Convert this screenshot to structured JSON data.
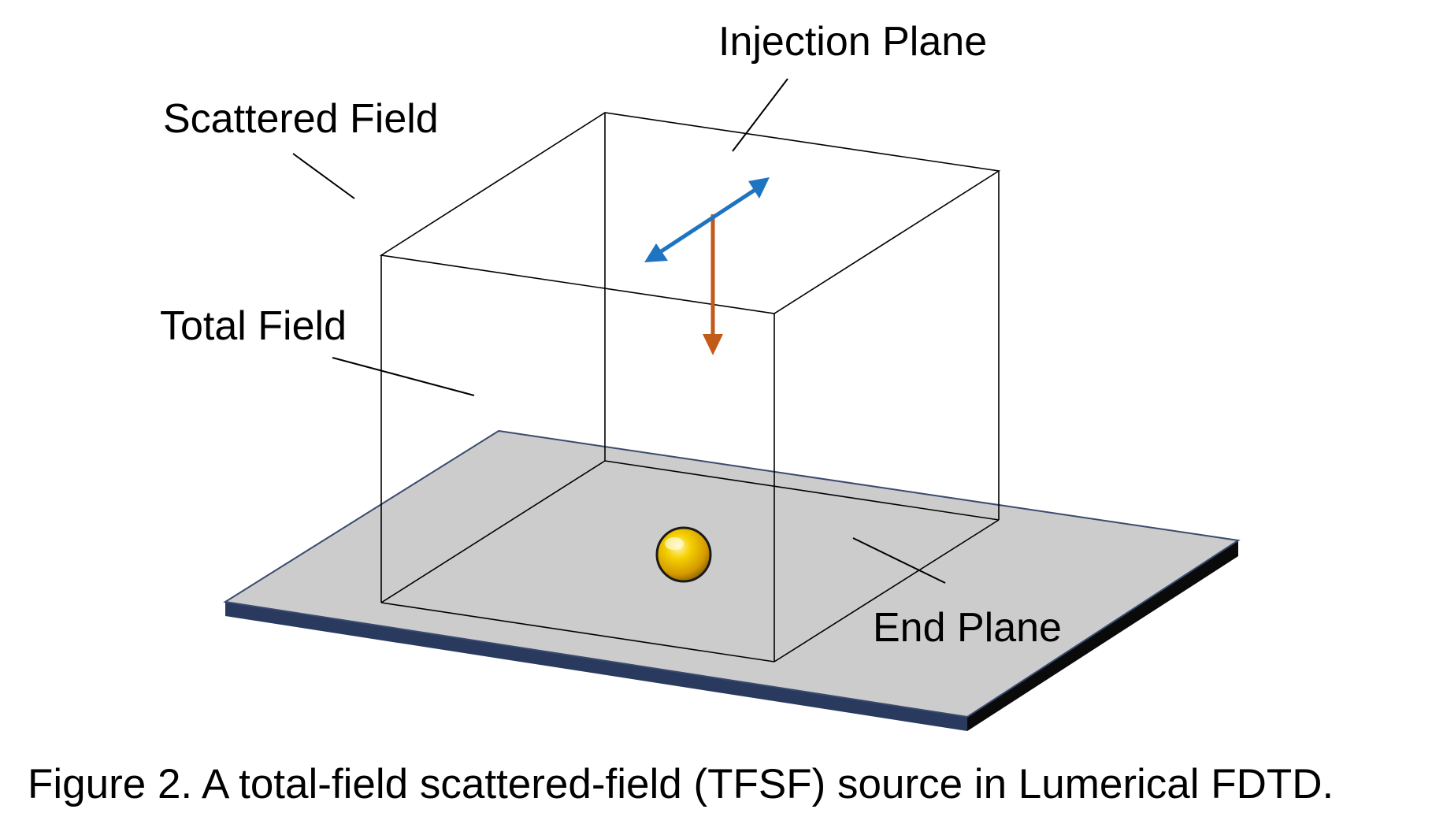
{
  "labels": {
    "injection_plane": "Injection Plane",
    "scattered_field": "Scattered Field",
    "total_field": "Total Field",
    "end_plane": "End Plane"
  },
  "caption": "Figure 2. A total-field scattered-field (TFSF) source in Lumerical FDTD.",
  "colors": {
    "substrate_top": "#cccccc",
    "substrate_front_edge": "#2a3a5e",
    "substrate_side_edge": "#0a0a0a",
    "polarization_arrow": "#1f74c2",
    "propagation_arrow": "#c25a1a",
    "particle": "#f2c200"
  }
}
